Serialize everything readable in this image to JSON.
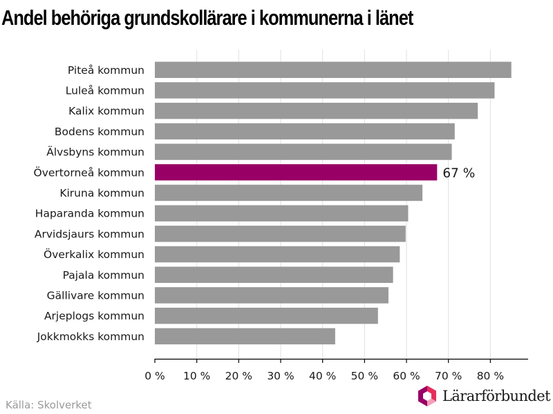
{
  "chart_data": {
    "type": "bar",
    "orientation": "horizontal",
    "title": "Andel behöriga grundskollärare i kommunerna i länet",
    "categories": [
      "Piteå kommun",
      "Luleå kommun",
      "Kalix kommun",
      "Bodens kommun",
      "Älvsbyns kommun",
      "Övertorneå kommun",
      "Kiruna kommun",
      "Haparanda kommun",
      "Arvidsjaurs kommun",
      "Överkalix kommun",
      "Pajala kommun",
      "Gällivare kommun",
      "Arjeplogs kommun",
      "Jokkmokks kommun"
    ],
    "values": [
      85,
      81,
      77,
      71.5,
      70.8,
      67.3,
      63.8,
      60.4,
      59.8,
      58.4,
      56.8,
      55.7,
      53.2,
      43
    ],
    "xlim": [
      0,
      89
    ],
    "xticks": [
      0,
      10,
      20,
      30,
      40,
      50,
      60,
      70,
      80
    ],
    "xtick_labels": [
      "0 %",
      "10 %",
      "20 %",
      "30 %",
      "40 %",
      "50 %",
      "60 %",
      "70 %",
      "80 %"
    ],
    "grid": true,
    "highlight": {
      "category": "Övertorneå kommun",
      "label": "67 %",
      "color": "#990066"
    },
    "bar_color": "#999999",
    "grid_color": "#e0e0e0",
    "axis_color": "#000000"
  },
  "footer": {
    "source": "Källa: Skolverket",
    "brand": "Lärarförbundet"
  },
  "logo": {
    "colors": [
      "#990066",
      "#e62e5c",
      "#f5a0b8"
    ]
  }
}
